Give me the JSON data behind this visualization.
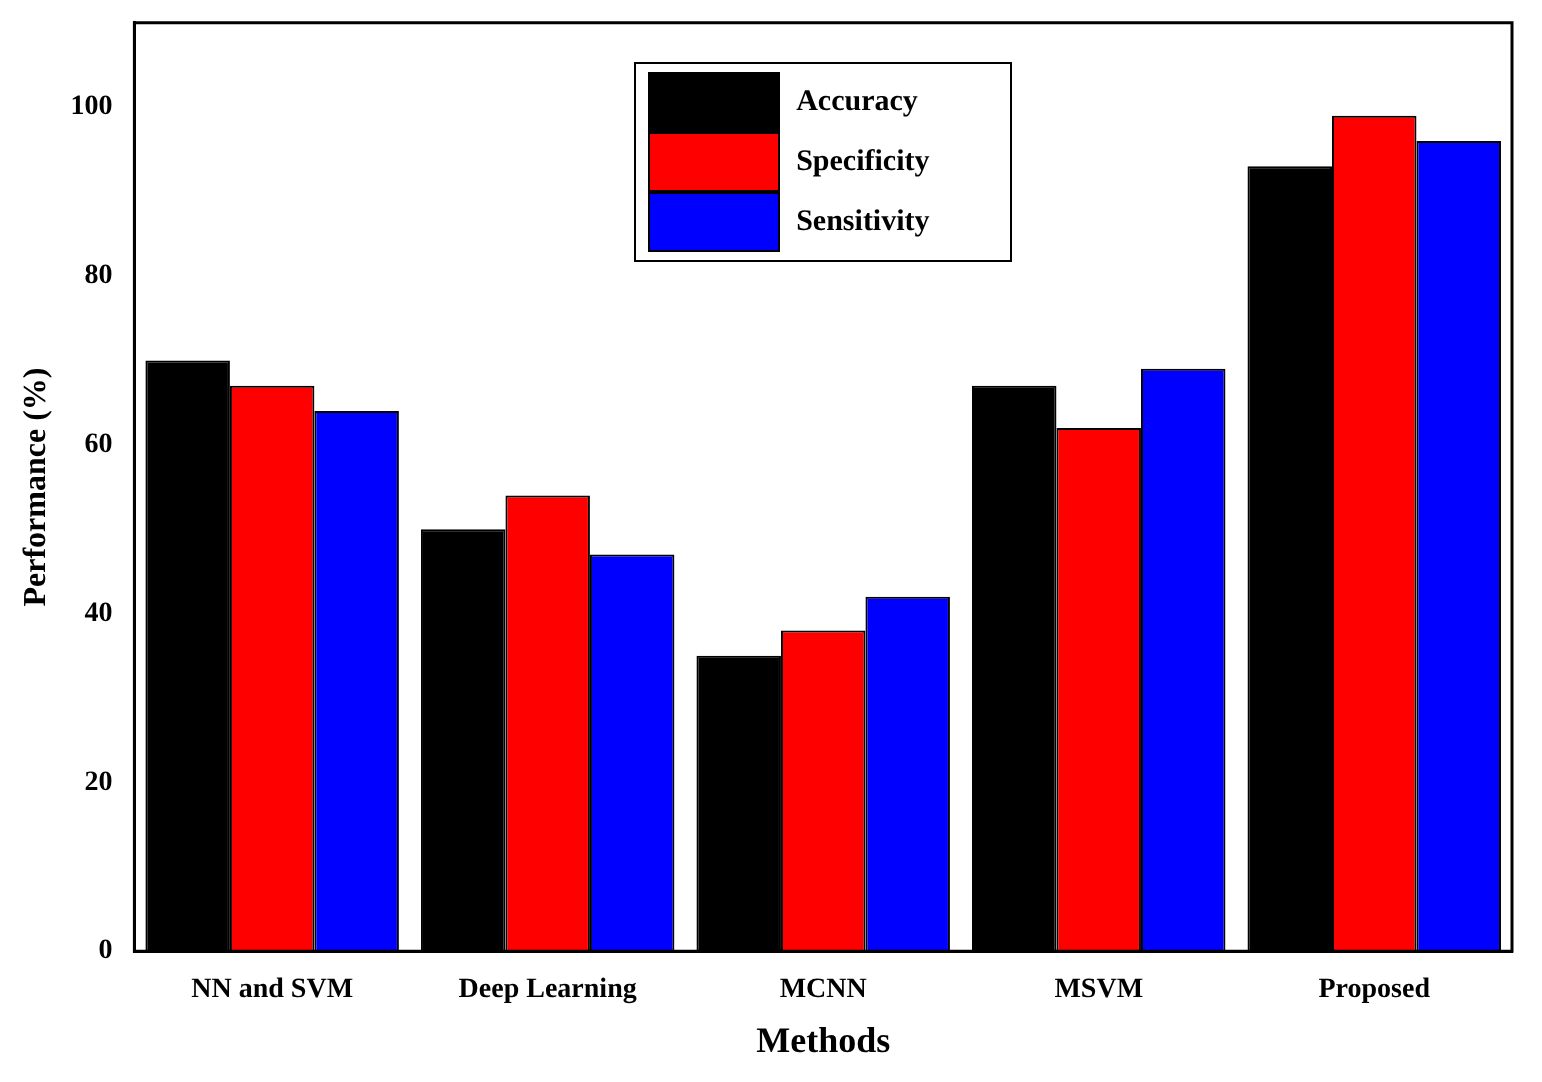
{
  "chart_data": {
    "type": "bar",
    "xlabel": "Methods",
    "ylabel": "Performance (%)",
    "categories": [
      "NN and SVM",
      "Deep Learning",
      "MCNN",
      "MSVM",
      "Proposed"
    ],
    "series": [
      {
        "name": "Accuracy",
        "color": "#000000",
        "values": [
          70,
          50,
          35,
          67,
          93
        ]
      },
      {
        "name": "Specificity",
        "color": "#ff0000",
        "values": [
          67,
          54,
          38,
          62,
          99
        ]
      },
      {
        "name": "Sensitivity",
        "color": "#0000ff",
        "values": [
          64,
          47,
          42,
          69,
          96
        ]
      }
    ],
    "ylim": [
      0,
      110
    ],
    "yticks": [
      0,
      20,
      40,
      60,
      80,
      100
    ],
    "grid": false,
    "legend": "top"
  }
}
